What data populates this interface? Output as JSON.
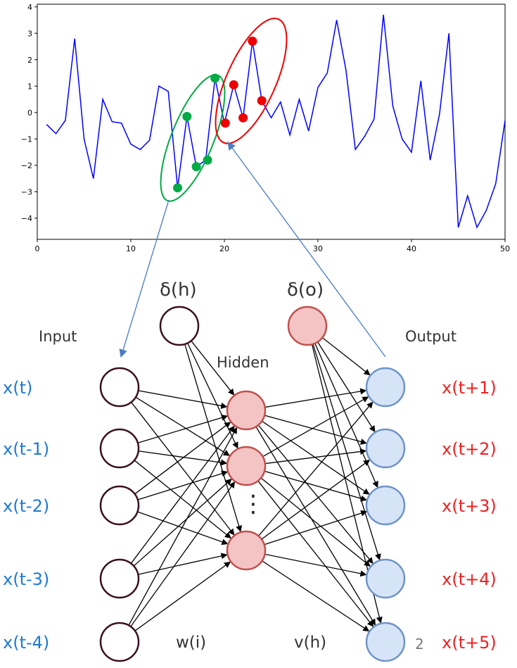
{
  "chart_data": {
    "type": "line",
    "x": [
      1,
      2,
      3,
      4,
      5,
      6,
      7,
      8,
      9,
      10,
      11,
      12,
      13,
      14,
      15,
      16,
      17,
      18,
      19,
      20,
      21,
      22,
      23,
      24,
      25,
      26,
      27,
      28,
      29,
      30,
      31,
      32,
      33,
      34,
      35,
      36,
      37,
      38,
      39,
      40,
      41,
      42,
      43,
      44,
      45,
      46,
      47,
      48,
      49,
      50
    ],
    "y": [
      -0.45,
      -0.8,
      -0.3,
      2.8,
      -1.0,
      -2.5,
      0.5,
      -0.35,
      -0.4,
      -1.2,
      -1.4,
      -1.05,
      1.0,
      0.8,
      -2.85,
      -0.15,
      -2.05,
      -1.8,
      1.3,
      -0.4,
      1.05,
      -0.2,
      2.7,
      0.45,
      -0.2,
      0.4,
      -0.85,
      0.5,
      -0.7,
      0.95,
      1.5,
      3.5,
      1.6,
      -1.4,
      -0.9,
      -0.25,
      3.7,
      0.25,
      -1.0,
      -1.5,
      1.2,
      -1.8,
      -0.05,
      3.0,
      -4.35,
      -3.15,
      -4.35,
      -3.7,
      -2.7,
      -0.3
    ],
    "xlim": [
      0,
      50
    ],
    "ylim": [
      -4.8,
      4.1
    ],
    "xticks": [
      "0",
      "10",
      "20",
      "30",
      "40",
      "50"
    ],
    "yticks": [
      "4",
      "3",
      "2",
      "1",
      "0",
      "−1",
      "−2",
      "−3",
      "−4"
    ],
    "line_color": "#0000ff",
    "green_points": [
      [
        15,
        -2.85
      ],
      [
        16,
        -0.15
      ],
      [
        17,
        -2.05
      ],
      [
        18.2,
        -1.8
      ],
      [
        19,
        1.3
      ]
    ],
    "red_points": [
      [
        20.1,
        -0.4
      ],
      [
        21,
        1.05
      ],
      [
        22,
        -0.2
      ],
      [
        23,
        2.7
      ],
      [
        24,
        0.45
      ]
    ],
    "green_color": "#00aa44",
    "red_color": "#ee0000"
  },
  "diagram": {
    "labels": {
      "input": "Input",
      "hidden": "Hidden",
      "output": "Output",
      "bias_hidden": "δ(h)",
      "bias_output": "δ(o)",
      "weights_input": "w(i)",
      "weights_hidden": "v(h)",
      "dots": "⋮",
      "page_number": "2"
    },
    "inputs": [
      "x(t)",
      "x(t-1)",
      "x(t-2)",
      "x(t-3)",
      "x(t-4)"
    ],
    "outputs": [
      "x(t+1)",
      "x(t+2)",
      "x(t+3)",
      "x(t+4)",
      "x(t+5)"
    ],
    "colors": {
      "input_text": "#1f7ad2",
      "output_text": "#ee2222",
      "label_text": "#333333",
      "input_node_stroke": "#3a1020",
      "hidden_fill": "#f4c4c4",
      "hidden_stroke": "#c0504d",
      "output_fill": "#d6e4f7",
      "output_stroke": "#6f94c8",
      "arrow_blue": "#4a7cc4"
    }
  }
}
